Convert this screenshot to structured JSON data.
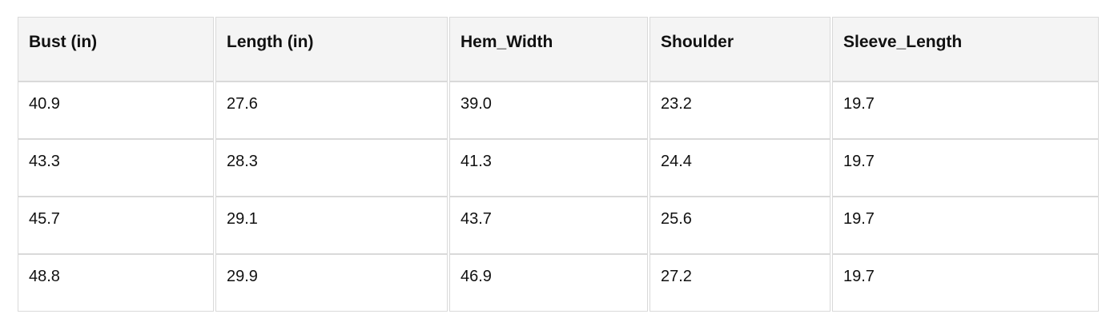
{
  "colors": {
    "page_background": "#ffffff",
    "header_background": "#f4f4f4",
    "border": "#d9d9d9",
    "text": "#111111"
  },
  "table": {
    "columns": [
      "Bust (in)",
      "Length (in)",
      "Hem_Width",
      "Shoulder",
      "Sleeve_Length"
    ],
    "rows": [
      [
        "40.9",
        "27.6",
        "39.0",
        "23.2",
        "19.7"
      ],
      [
        "43.3",
        "28.3",
        "41.3",
        "24.4",
        "19.7"
      ],
      [
        "45.7",
        "29.1",
        "43.7",
        "25.6",
        "19.7"
      ],
      [
        "48.8",
        "29.9",
        "46.9",
        "27.2",
        "19.7"
      ]
    ]
  }
}
